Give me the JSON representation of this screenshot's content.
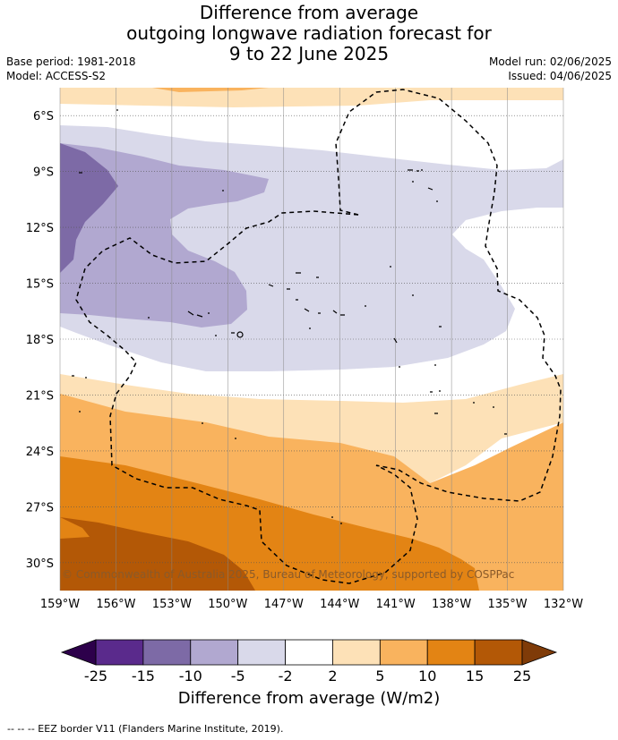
{
  "title": {
    "line1": "Difference from average",
    "line2": "outgoing longwave radiation forecast for",
    "line3": "9 to 22 June 2025"
  },
  "meta": {
    "base_period": "Base period: 1981-2018",
    "model": "Model: ACCESS-S2",
    "model_run": "Model run: 02/06/2025",
    "issued": "Issued: 04/06/2025"
  },
  "map": {
    "lat_labels": [
      "6°S",
      "9°S",
      "12°S",
      "15°S",
      "18°S",
      "21°S",
      "24°S",
      "27°S",
      "30°S"
    ],
    "lon_labels": [
      "159°W",
      "156°W",
      "153°W",
      "150°W",
      "147°W",
      "144°W",
      "141°W",
      "138°W",
      "135°W",
      "132°W"
    ],
    "copyright": "© Commonwealth of Australia 2025, Bureau of Meteorology, supported by COSPPac",
    "lat_range": [
      -31.5,
      -4.5
    ],
    "lon_range": [
      -159,
      -132
    ]
  },
  "colorbar": {
    "ticks": [
      "-25",
      "-15",
      "-10",
      "-5",
      "-2",
      "2",
      "5",
      "10",
      "15",
      "25"
    ],
    "colors": [
      "#5a2a8c",
      "#7d6aa6",
      "#b1a8d0",
      "#d9d9ea",
      "#ffffff",
      "#fde1b7",
      "#f9b35e",
      "#e38414",
      "#b35806"
    ],
    "under_color": "#2d004b",
    "over_color": "#7f3b08",
    "label": "Difference from average (W/m2)"
  },
  "footer": "--  --  -- EEZ border V11 (Flanders Marine Institute, 2019)."
}
